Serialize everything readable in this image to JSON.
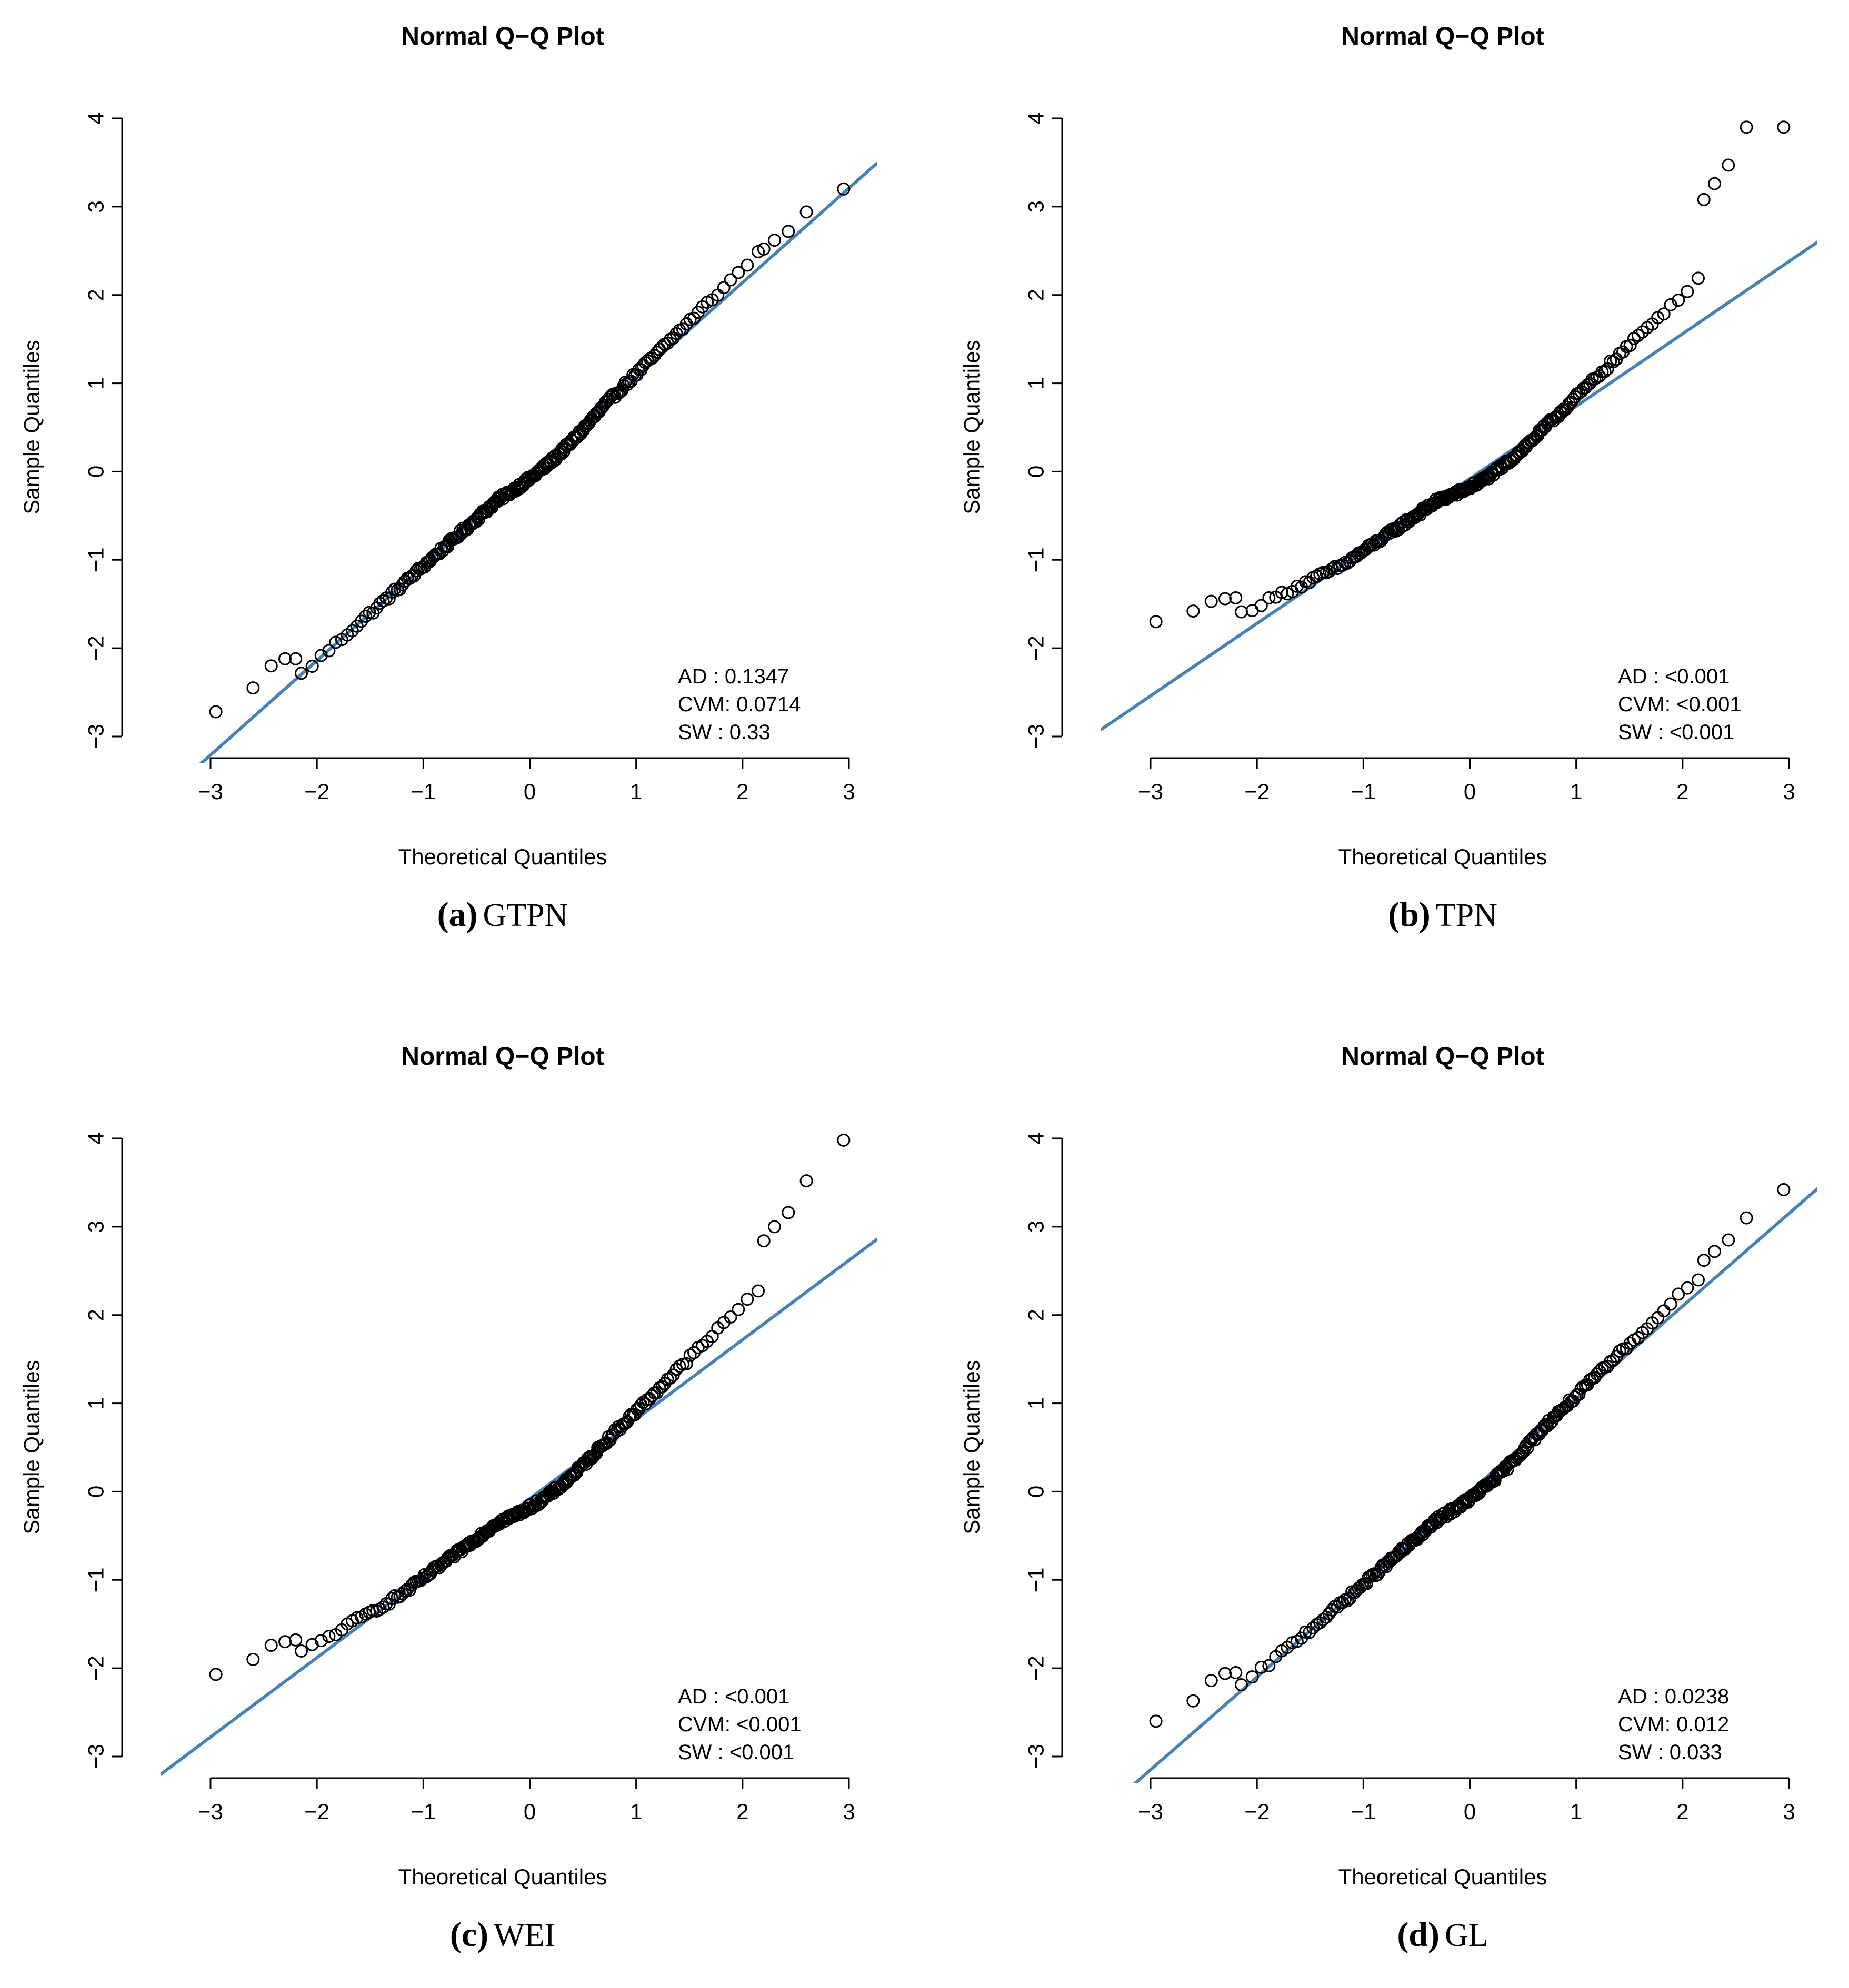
{
  "chart_data": [
    {
      "panel": "a",
      "type": "scatter",
      "title": "Normal Q−Q Plot",
      "xlabel": "Theoretical Quantiles",
      "ylabel": "Sample Quantiles",
      "xlim": [
        -3,
        3
      ],
      "ylim": [
        -3,
        4
      ],
      "xticks": [
        -3,
        -2,
        -1,
        0,
        1,
        2,
        3
      ],
      "xtick_labels": [
        "−3",
        "−2",
        "−1",
        "0",
        "1",
        "2",
        "3"
      ],
      "yticks": [
        -3,
        -2,
        -1,
        0,
        1,
        2,
        3,
        4
      ],
      "ytick_labels": [
        "−3",
        "−2",
        "−1",
        "0",
        "1",
        "2",
        "3",
        "4"
      ],
      "ref_line": {
        "intercept": 0.0,
        "slope": 1.07
      },
      "deviation": {
        "lower_tail": 0.0,
        "upper_tail": 0.12,
        "wiggle": 0.1
      },
      "points_count": 220,
      "tail_points": {
        "x": [
          -2.95,
          -2.6,
          -2.43,
          -2.3,
          -2.2,
          2.2,
          2.3,
          2.43,
          2.6,
          2.95
        ],
        "y": [
          -2.72,
          -2.45,
          -2.2,
          -2.12,
          -2.12,
          2.52,
          2.62,
          2.72,
          2.94,
          3.2
        ]
      },
      "stats_lines": [
        "AD   : 0.1347",
        "CVM: 0.0714",
        "SW   : 0.33"
      ],
      "caption_letter": "(a)",
      "caption_name": "GTPN",
      "line_color": "#4682B4"
    },
    {
      "panel": "b",
      "type": "scatter",
      "title": "Normal Q−Q Plot",
      "xlabel": "Theoretical Quantiles",
      "ylabel": "Sample Quantiles",
      "xlim": [
        -3,
        3
      ],
      "ylim": [
        -3,
        4
      ],
      "xticks": [
        -3,
        -2,
        -1,
        0,
        1,
        2,
        3
      ],
      "xtick_labels": [
        "−3",
        "−2",
        "−1",
        "0",
        "1",
        "2",
        "3"
      ],
      "yticks": [
        -3,
        -2,
        -1,
        0,
        1,
        2,
        3,
        4
      ],
      "ytick_labels": [
        "−3",
        "−2",
        "−1",
        "0",
        "1",
        "2",
        "3",
        "4"
      ],
      "ref_line": {
        "intercept": -0.08,
        "slope": 0.82
      },
      "deviation": {
        "lower_tail": 0.25,
        "upper_tail": 0.35,
        "wiggle": 0.12
      },
      "points_count": 220,
      "tail_points": {
        "x": [
          -2.95,
          -2.6,
          -2.43,
          -2.3,
          -2.2,
          2.2,
          2.3,
          2.43,
          2.6,
          2.95
        ],
        "y": [
          -1.7,
          -1.58,
          -1.47,
          -1.44,
          -1.43,
          3.08,
          3.26,
          3.47,
          3.9,
          3.9
        ]
      },
      "stats_lines": [
        "AD   : <0.001",
        "CVM: <0.001",
        "SW   : <0.001"
      ],
      "caption_letter": "(b)",
      "caption_name": "TPN",
      "line_color": "#4682B4"
    },
    {
      "panel": "c",
      "type": "scatter",
      "title": "Normal Q−Q Plot",
      "xlabel": "Theoretical Quantiles",
      "ylabel": "Sample Quantiles",
      "xlim": [
        -3,
        3
      ],
      "ylim": [
        -3,
        4
      ],
      "xticks": [
        -3,
        -2,
        -1,
        0,
        1,
        2,
        3
      ],
      "xtick_labels": [
        "−3",
        "−2",
        "−1",
        "0",
        "1",
        "2",
        "3"
      ],
      "yticks": [
        -3,
        -2,
        -1,
        0,
        1,
        2,
        3,
        4
      ],
      "ytick_labels": [
        "−3",
        "−2",
        "−1",
        "0",
        "1",
        "2",
        "3",
        "4"
      ],
      "ref_line": {
        "intercept": -0.08,
        "slope": 0.9
      },
      "deviation": {
        "lower_tail": 0.2,
        "upper_tail": 0.3,
        "wiggle": 0.12
      },
      "points_count": 220,
      "tail_points": {
        "x": [
          -2.95,
          -2.6,
          -2.43,
          -2.3,
          -2.2,
          2.2,
          2.3,
          2.43,
          2.6,
          2.95
        ],
        "y": [
          -2.07,
          -1.9,
          -1.74,
          -1.7,
          -1.68,
          2.84,
          3.0,
          3.16,
          3.52,
          3.98
        ]
      },
      "stats_lines": [
        "AD   : <0.001",
        "CVM: <0.001",
        "SW   : <0.001"
      ],
      "caption_letter": "(c)",
      "caption_name": "WEI",
      "line_color": "#4682B4"
    },
    {
      "panel": "d",
      "type": "scatter",
      "title": "Normal Q−Q Plot",
      "xlabel": "Theoretical Quantiles",
      "ylabel": "Sample Quantiles",
      "xlim": [
        -3,
        3
      ],
      "ylim": [
        -3,
        4
      ],
      "xticks": [
        -3,
        -2,
        -1,
        0,
        1,
        2,
        3
      ],
      "xtick_labels": [
        "−3",
        "−2",
        "−1",
        "0",
        "1",
        "2",
        "3"
      ],
      "yticks": [
        -3,
        -2,
        -1,
        0,
        1,
        2,
        3,
        4
      ],
      "ytick_labels": [
        "−3",
        "−2",
        "−1",
        "0",
        "1",
        "2",
        "3",
        "4"
      ],
      "ref_line": {
        "intercept": 0.0,
        "slope": 1.05
      },
      "deviation": {
        "lower_tail": 0.05,
        "upper_tail": 0.12,
        "wiggle": 0.1
      },
      "points_count": 220,
      "tail_points": {
        "x": [
          -2.95,
          -2.6,
          -2.43,
          -2.3,
          -2.2,
          2.2,
          2.3,
          2.43,
          2.6,
          2.95
        ],
        "y": [
          -2.6,
          -2.37,
          -2.14,
          -2.06,
          -2.05,
          2.62,
          2.72,
          2.85,
          3.1,
          3.42
        ]
      },
      "stats_lines": [
        "AD   : 0.0238",
        "CVM: 0.012",
        "SW   : 0.033"
      ],
      "caption_letter": "(d)",
      "caption_name": "GL",
      "line_color": "#4682B4"
    }
  ]
}
